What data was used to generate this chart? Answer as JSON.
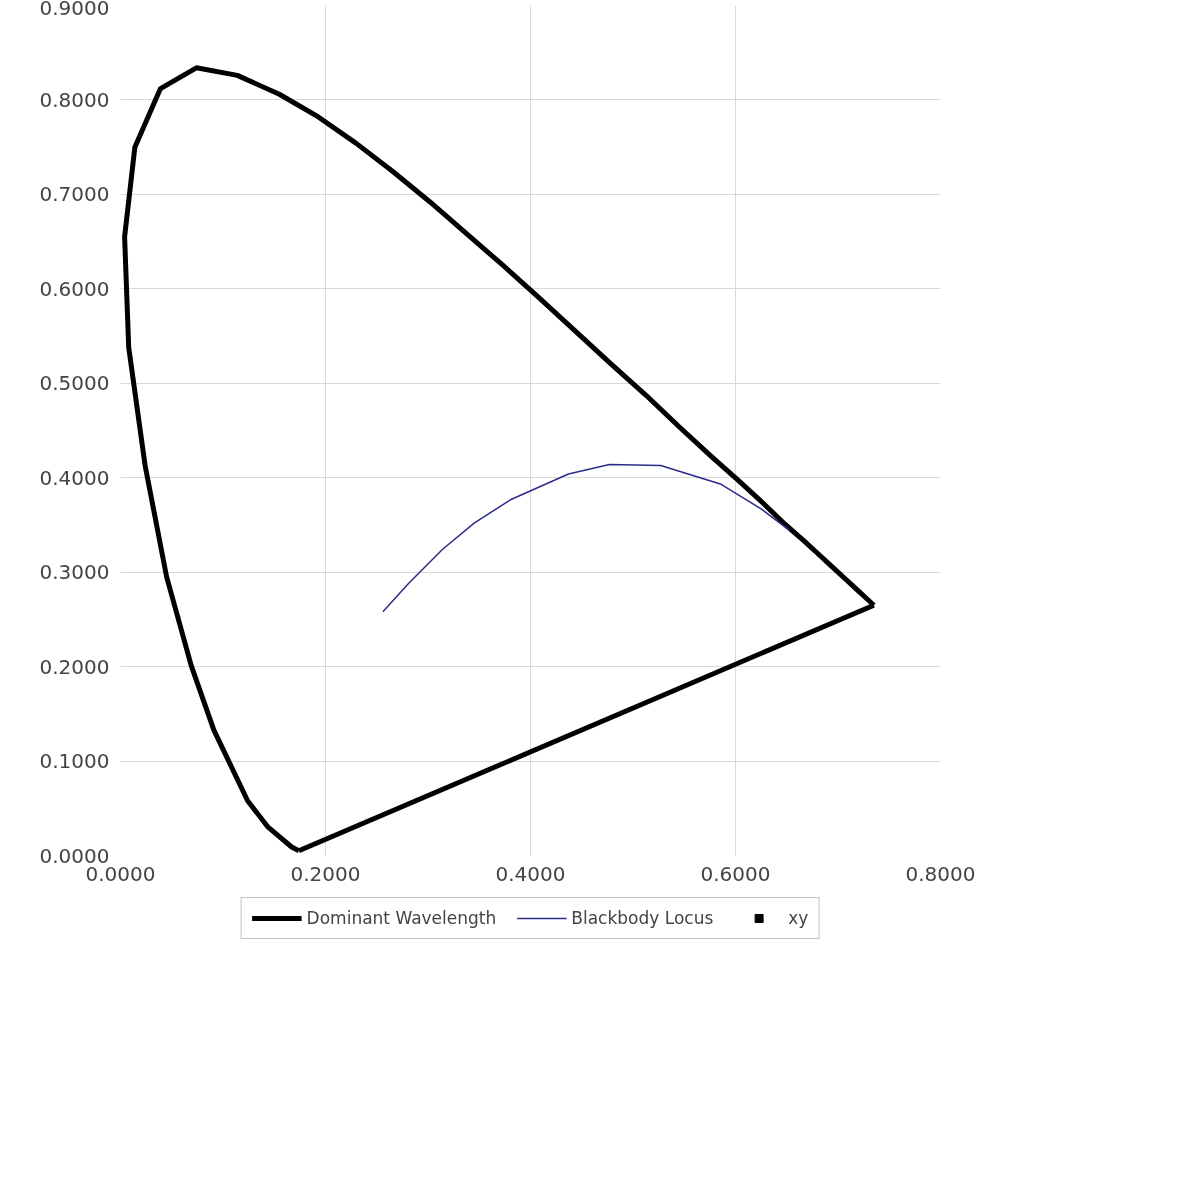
{
  "chart_data": {
    "type": "line",
    "xlim": [
      0,
      0.8
    ],
    "ylim": [
      0,
      0.9
    ],
    "xticks": [
      {
        "value": 0,
        "label": "0.0000"
      },
      {
        "value": 0.2,
        "label": "0.2000"
      },
      {
        "value": 0.4,
        "label": "0.4000"
      },
      {
        "value": 0.6,
        "label": "0.6000"
      },
      {
        "value": 0.8,
        "label": "0.8000"
      }
    ],
    "yticks": [
      {
        "value": 0,
        "label": "0.0000"
      },
      {
        "value": 0.1,
        "label": "0.1000"
      },
      {
        "value": 0.2,
        "label": "0.2000"
      },
      {
        "value": 0.3,
        "label": "0.3000"
      },
      {
        "value": 0.4,
        "label": "0.4000"
      },
      {
        "value": 0.5,
        "label": "0.5000"
      },
      {
        "value": 0.6,
        "label": "0.6000"
      },
      {
        "value": 0.7,
        "label": "0.7000"
      },
      {
        "value": 0.8,
        "label": "0.8000"
      },
      {
        "value": 0.9,
        "label": "0.9000"
      }
    ],
    "grid": true,
    "legend": "bottom",
    "marker": "none",
    "line_style": "solid",
    "series": [
      {
        "name": "Dominant Wavelength",
        "color": "#000000",
        "x": [
          0.174,
          0.167,
          0.144,
          0.124,
          0.091,
          0.069,
          0.045,
          0.024,
          0.008,
          0.004,
          0.014,
          0.039,
          0.074,
          0.114,
          0.155,
          0.193,
          0.23,
          0.266,
          0.302,
          0.337,
          0.373,
          0.409,
          0.444,
          0.479,
          0.513,
          0.545,
          0.575,
          0.603,
          0.627,
          0.648,
          0.666,
          0.68,
          0.692,
          0.701,
          0.708,
          0.714,
          0.719,
          0.723,
          0.726,
          0.73,
          0.735
        ],
        "values": [
          0.005,
          0.009,
          0.03,
          0.058,
          0.133,
          0.201,
          0.295,
          0.413,
          0.538,
          0.655,
          0.75,
          0.812,
          0.834,
          0.826,
          0.806,
          0.782,
          0.754,
          0.724,
          0.692,
          0.659,
          0.625,
          0.59,
          0.555,
          0.52,
          0.487,
          0.454,
          0.424,
          0.397,
          0.373,
          0.351,
          0.334,
          0.32,
          0.308,
          0.299,
          0.292,
          0.286,
          0.281,
          0.277,
          0.274,
          0.27,
          0.265
        ]
      },
      {
        "color": "#000000",
        "x": [
          0.735,
          0.174
        ],
        "values": [
          0.265,
          0.005
        ]
      },
      {
        "name": "Blackbody Locus",
        "color": "#2b2b8a",
        "x": [
          0.256,
          0.281,
          0.314,
          0.345,
          0.381,
          0.437,
          0.477,
          0.527,
          0.586,
          0.625,
          0.653
        ],
        "values": [
          0.258,
          0.288,
          0.324,
          0.352,
          0.377,
          0.404,
          0.414,
          0.413,
          0.393,
          0.367,
          0.344
        ]
      },
      {
        "name": "xy",
        "color": "#000000",
        "type": "scatter",
        "marker": "square"
      }
    ]
  }
}
